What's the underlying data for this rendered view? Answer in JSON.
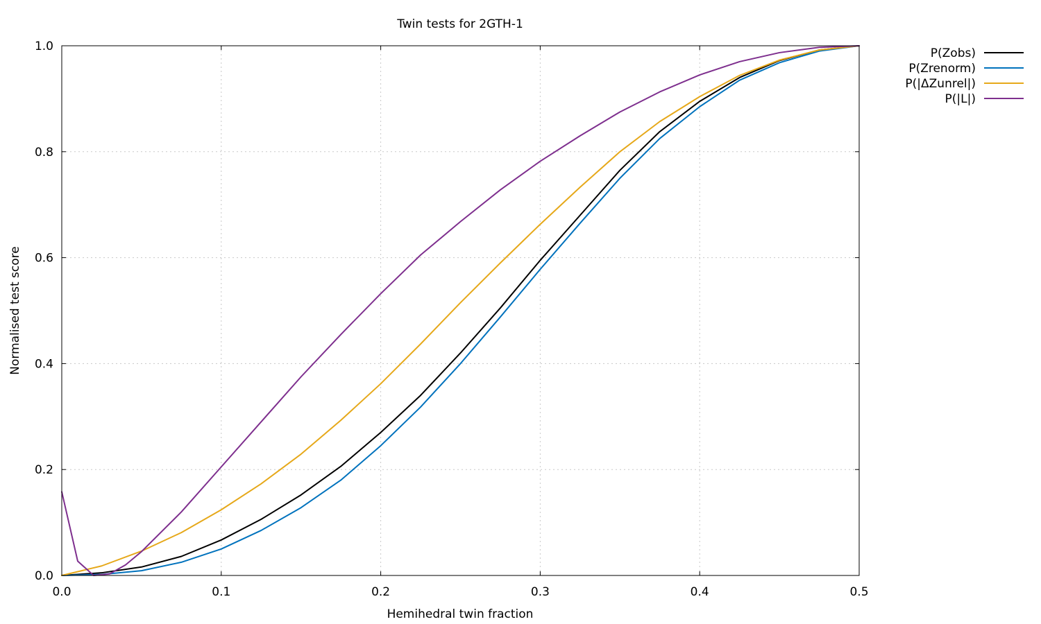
{
  "chart_data": {
    "type": "line",
    "title": "Twin tests for 2GTH-1",
    "xlabel": "Hemihedral twin fraction",
    "ylabel": "Normalised test score",
    "xlim": [
      0.0,
      0.5
    ],
    "ylim": [
      0.0,
      1.0
    ],
    "xticks": [
      "0.0",
      "0.1",
      "0.2",
      "0.3",
      "0.4",
      "0.5"
    ],
    "yticks": [
      "0.0",
      "0.2",
      "0.4",
      "0.6",
      "0.8",
      "1.0"
    ],
    "grid": true,
    "legend_position": "outside-top-right",
    "series": [
      {
        "name": "P(Zobs)",
        "color": "#000000",
        "x": [
          0.0,
          0.025,
          0.05,
          0.075,
          0.1,
          0.125,
          0.15,
          0.175,
          0.2,
          0.225,
          0.25,
          0.275,
          0.3,
          0.325,
          0.35,
          0.375,
          0.4,
          0.425,
          0.45,
          0.475,
          0.5
        ],
        "y": [
          0.0,
          0.005,
          0.016,
          0.036,
          0.067,
          0.106,
          0.152,
          0.206,
          0.27,
          0.34,
          0.42,
          0.505,
          0.595,
          0.68,
          0.765,
          0.838,
          0.895,
          0.94,
          0.972,
          0.992,
          1.0
        ]
      },
      {
        "name": "P(Zrenorm)",
        "color": "#0072bd",
        "x": [
          0.0,
          0.025,
          0.05,
          0.075,
          0.1,
          0.125,
          0.15,
          0.175,
          0.2,
          0.225,
          0.25,
          0.275,
          0.3,
          0.325,
          0.35,
          0.375,
          0.4,
          0.425,
          0.45,
          0.475,
          0.5
        ],
        "y": [
          0.0,
          0.002,
          0.009,
          0.025,
          0.05,
          0.085,
          0.128,
          0.18,
          0.245,
          0.318,
          0.4,
          0.488,
          0.578,
          0.665,
          0.75,
          0.825,
          0.885,
          0.935,
          0.968,
          0.99,
          1.0
        ]
      },
      {
        "name": "P(|ΔZunrel|)",
        "color": "#e6a819",
        "x": [
          0.0,
          0.025,
          0.05,
          0.075,
          0.1,
          0.125,
          0.15,
          0.175,
          0.2,
          0.225,
          0.25,
          0.275,
          0.3,
          0.325,
          0.35,
          0.375,
          0.4,
          0.425,
          0.45,
          0.475,
          0.5
        ],
        "y": [
          0.0,
          0.018,
          0.046,
          0.081,
          0.124,
          0.173,
          0.229,
          0.293,
          0.362,
          0.437,
          0.515,
          0.59,
          0.663,
          0.733,
          0.8,
          0.857,
          0.904,
          0.944,
          0.973,
          0.992,
          1.0
        ]
      },
      {
        "name": "P(|L|)",
        "color": "#7e2f8e",
        "x": [
          0.0,
          0.01,
          0.02,
          0.03,
          0.04,
          0.05,
          0.075,
          0.1,
          0.125,
          0.15,
          0.175,
          0.2,
          0.225,
          0.25,
          0.275,
          0.3,
          0.325,
          0.35,
          0.375,
          0.4,
          0.425,
          0.45,
          0.475,
          0.5
        ],
        "y": [
          0.158,
          0.027,
          0.0,
          0.003,
          0.02,
          0.045,
          0.12,
          0.205,
          0.29,
          0.375,
          0.455,
          0.532,
          0.605,
          0.668,
          0.728,
          0.782,
          0.83,
          0.875,
          0.913,
          0.945,
          0.97,
          0.987,
          0.997,
          1.0
        ]
      }
    ]
  }
}
